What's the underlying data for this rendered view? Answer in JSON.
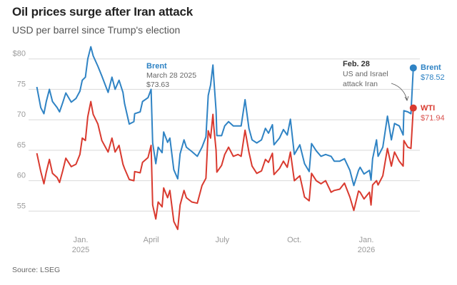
{
  "title": "Oil prices surge after Iran attack",
  "subtitle": "USD per barrel since Trump's election",
  "source": "Source: LSEG",
  "chart_data": {
    "type": "line",
    "title": "Oil prices surge after Iran attack",
    "subtitle": "USD per barrel since Trump's election",
    "xlabel": "",
    "ylabel": "",
    "ylim": [
      51,
      83
    ],
    "grid": true,
    "y_ticks": [
      "$80",
      "75",
      "70",
      "65",
      "60",
      "55"
    ],
    "y_tick_values": [
      80,
      75,
      70,
      65,
      60,
      55
    ],
    "x_ticks": [
      {
        "date": "2025-01-01",
        "label": "Jan.",
        "sublabel": "2025"
      },
      {
        "date": "2025-04-01",
        "label": "April",
        "sublabel": ""
      },
      {
        "date": "2025-07-01",
        "label": "July",
        "sublabel": ""
      },
      {
        "date": "2025-10-01",
        "label": "Oct.",
        "sublabel": ""
      },
      {
        "date": "2026-01-01",
        "label": "Jan.",
        "sublabel": "2026"
      }
    ],
    "x": [
      "2024-11-06",
      "2024-11-11",
      "2024-11-15",
      "2024-11-18",
      "2024-11-22",
      "2024-11-26",
      "2024-12-02",
      "2024-12-05",
      "2024-12-09",
      "2024-12-13",
      "2024-12-20",
      "2024-12-26",
      "2024-12-31",
      "2025-01-03",
      "2025-01-07",
      "2025-01-10",
      "2025-01-14",
      "2025-01-17",
      "2025-01-23",
      "2025-01-28",
      "2025-02-05",
      "2025-02-10",
      "2025-02-14",
      "2025-02-19",
      "2025-02-24",
      "2025-02-26",
      "2025-03-04",
      "2025-03-10",
      "2025-03-11",
      "2025-03-18",
      "2025-03-21",
      "2025-03-28",
      "2025-04-01",
      "2025-04-03",
      "2025-04-07",
      "2025-04-10",
      "2025-04-15",
      "2025-04-17",
      "2025-04-22",
      "2025-04-25",
      "2025-04-30",
      "2025-05-05",
      "2025-05-08",
      "2025-05-13",
      "2025-05-16",
      "2025-05-23",
      "2025-05-30",
      "2025-06-05",
      "2025-06-10",
      "2025-06-13",
      "2025-06-16",
      "2025-06-19",
      "2025-06-20",
      "2025-06-23",
      "2025-06-24",
      "2025-06-30",
      "2025-07-04",
      "2025-07-09",
      "2025-07-15",
      "2025-07-21",
      "2025-07-25",
      "2025-07-30",
      "2025-08-04",
      "2025-08-08",
      "2025-08-14",
      "2025-08-20",
      "2025-08-25",
      "2025-08-29",
      "2025-09-03",
      "2025-09-05",
      "2025-09-12",
      "2025-09-17",
      "2025-09-22",
      "2025-09-26",
      "2025-10-01",
      "2025-10-08",
      "2025-10-14",
      "2025-10-20",
      "2025-10-23",
      "2025-10-29",
      "2025-11-04",
      "2025-11-10",
      "2025-11-17",
      "2025-11-21",
      "2025-11-28",
      "2025-12-04",
      "2025-12-11",
      "2025-12-16",
      "2025-12-22",
      "2025-12-24",
      "2025-12-29",
      "2026-01-05",
      "2026-01-07",
      "2026-01-09",
      "2026-01-14",
      "2026-01-16",
      "2026-01-22",
      "2026-01-28",
      "2026-02-02",
      "2026-02-06",
      "2026-02-12",
      "2026-02-17",
      "2026-02-18",
      "2026-02-23",
      "2026-02-27",
      "2026-03-02"
    ],
    "series": [
      {
        "name": "Brent",
        "color": "#2f83c4",
        "end_label": "$78.52",
        "values": [
          75.4,
          72.0,
          71.0,
          73.0,
          75.0,
          73.0,
          72.0,
          71.3,
          72.8,
          74.4,
          72.9,
          73.5,
          74.7,
          76.5,
          77.0,
          80.0,
          82.0,
          80.5,
          78.8,
          77.2,
          74.5,
          77.0,
          75.0,
          76.5,
          74.5,
          72.7,
          69.3,
          69.7,
          71.0,
          71.3,
          73.0,
          73.63,
          75.0,
          66.2,
          62.8,
          65.5,
          64.6,
          68.0,
          66.3,
          67.0,
          61.8,
          60.3,
          64.4,
          66.7,
          65.5,
          64.8,
          64.0,
          65.5,
          67.2,
          74.0,
          75.7,
          79.0,
          77.0,
          71.5,
          67.4,
          67.4,
          69.0,
          69.7,
          69.0,
          69.0,
          69.0,
          73.3,
          68.6,
          66.7,
          66.2,
          66.7,
          68.6,
          67.8,
          69.2,
          65.9,
          67.0,
          68.4,
          67.5,
          70.1,
          64.3,
          65.9,
          62.8,
          61.5,
          66.1,
          64.9,
          64.0,
          64.3,
          64.0,
          63.2,
          63.2,
          63.6,
          61.7,
          59.2,
          61.7,
          62.2,
          61.1,
          61.7,
          60.1,
          63.6,
          66.7,
          64.0,
          65.5,
          70.6,
          66.7,
          69.4,
          69.0,
          67.5,
          71.5,
          71.3,
          71.0,
          78.52
        ]
      },
      {
        "name": "WTI",
        "color": "#d93a2f",
        "end_label": "$71.94",
        "values": [
          64.5,
          61.5,
          59.5,
          61.4,
          63.5,
          61.2,
          60.5,
          59.7,
          61.6,
          63.7,
          62.3,
          62.7,
          64.3,
          67.0,
          66.6,
          70.5,
          73.0,
          70.9,
          69.3,
          66.6,
          64.7,
          67.0,
          64.7,
          65.8,
          62.7,
          62.0,
          60.2,
          60.0,
          61.5,
          61.3,
          63.0,
          63.8,
          65.8,
          56.0,
          53.7,
          56.5,
          55.7,
          58.8,
          57.2,
          58.4,
          53.3,
          52.0,
          56.0,
          58.4,
          57.2,
          56.5,
          56.3,
          59.2,
          60.4,
          68.2,
          67.0,
          70.9,
          69.0,
          65.0,
          61.4,
          62.5,
          64.3,
          65.5,
          64.0,
          64.3,
          64.0,
          68.3,
          64.7,
          62.4,
          61.2,
          61.6,
          63.5,
          63.0,
          64.5,
          61.0,
          62.0,
          63.2,
          62.2,
          64.7,
          60.0,
          60.8,
          57.3,
          56.7,
          61.2,
          60.0,
          59.5,
          60.0,
          58.1,
          58.4,
          58.6,
          59.6,
          57.3,
          55.1,
          58.3,
          58.1,
          57.0,
          58.1,
          56.0,
          59.3,
          60.0,
          59.3,
          60.8,
          65.3,
          62.4,
          64.7,
          63.2,
          62.4,
          66.6,
          65.5,
          65.3,
          71.94
        ]
      }
    ],
    "annotations": [
      {
        "series": "Brent",
        "date": "2025-03-28",
        "title": "Brent",
        "lines": [
          "March 28 2025",
          "$73.63"
        ]
      },
      {
        "date": "2026-02-28",
        "title": "Feb. 28",
        "lines": [
          "US and Israel",
          "attack Iran"
        ]
      }
    ]
  }
}
